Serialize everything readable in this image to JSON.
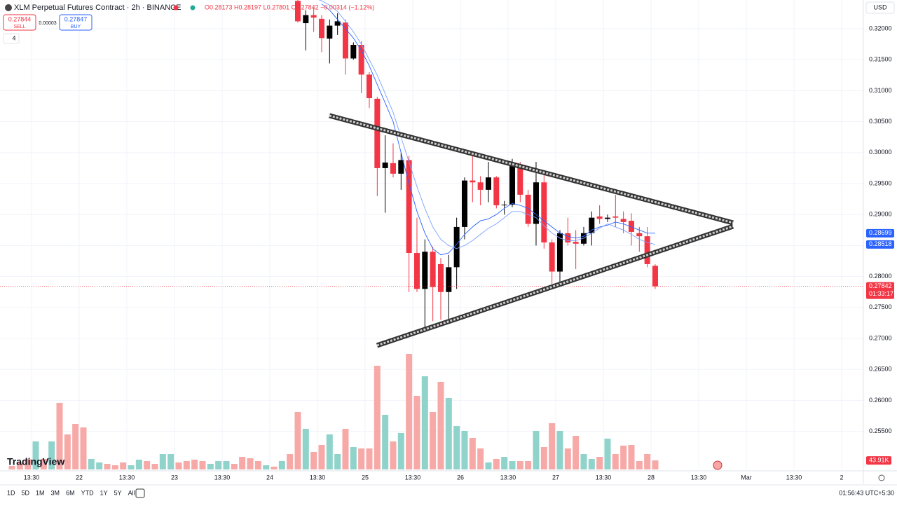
{
  "header": {
    "symbol": "XLM Perpetual Futures Contract · 2h · BINANCE",
    "ohlc": "O0.28173 H0.28197 L0.27801 C0.27842 −0.00314 (−1.12%)",
    "sell_price": "0.27844",
    "sell": "SELL",
    "spread": "0.00003",
    "buy_price": "0.27847",
    "buy": "BUY",
    "indicators": "4",
    "currency": "USD"
  },
  "price_axis": {
    "ylim": [
      0.24885,
      0.32464
    ],
    "ticks": [
      {
        "value": 0.32,
        "label": "0.32000"
      },
      {
        "value": 0.315,
        "label": "0.31500"
      },
      {
        "value": 0.31,
        "label": "0.31000"
      },
      {
        "value": 0.305,
        "label": "0.30500"
      },
      {
        "value": 0.3,
        "label": "0.30000"
      },
      {
        "value": 0.295,
        "label": "0.29500"
      },
      {
        "value": 0.29,
        "label": "0.29000"
      },
      {
        "value": 0.285,
        "label": "0.28500"
      },
      {
        "value": 0.28,
        "label": "0.28000"
      },
      {
        "value": 0.275,
        "label": "0.27500"
      },
      {
        "value": 0.27,
        "label": "0.27000"
      },
      {
        "value": 0.265,
        "label": "0.26500"
      },
      {
        "value": 0.26,
        "label": "0.26000"
      },
      {
        "value": 0.255,
        "label": "0.25500"
      }
    ],
    "ma_fast": {
      "value": 0.28699,
      "label": "0.28699",
      "color": "#2962ff"
    },
    "ma_slow": {
      "value": 0.28518,
      "label": "0.28518",
      "color": "#2962ff"
    },
    "last": {
      "value": 0.27842,
      "label": "0.27842",
      "countdown": "01:33:17"
    }
  },
  "volume_axis": {
    "vlim": [
      0,
      612000
    ],
    "last": {
      "value": 43910,
      "label": "43.91K"
    }
  },
  "time_axis": [
    "13:30",
    "22",
    "13:30",
    "23",
    "13:30",
    "24",
    "13:30",
    "25",
    "13:30",
    "26",
    "13:30",
    "27",
    "13:30",
    "28",
    "13:30",
    "Mar",
    "13:30",
    "2"
  ],
  "bars": [
    {
      "v": 17000,
      "up": false
    },
    {
      "v": 34000,
      "up": false
    },
    {
      "v": 51000,
      "up": false
    },
    {
      "v": 136000,
      "up": true
    },
    {
      "v": 51000,
      "up": false
    },
    {
      "v": 136000,
      "up": true
    },
    {
      "v": 323000,
      "up": false
    },
    {
      "v": 170000,
      "up": false
    },
    {
      "v": 221000,
      "up": false
    },
    {
      "v": 204000,
      "up": false
    },
    {
      "v": 51000,
      "up": true
    },
    {
      "v": 34000,
      "up": true
    },
    {
      "v": 27200,
      "up": false
    },
    {
      "v": 20400,
      "up": false
    },
    {
      "v": 34000,
      "up": false
    },
    {
      "v": 20400,
      "up": true
    },
    {
      "v": 47600,
      "up": true
    },
    {
      "v": 40800,
      "up": false
    },
    {
      "v": 27200,
      "up": false
    },
    {
      "v": 74800,
      "up": true
    },
    {
      "v": 74800,
      "up": true
    },
    {
      "v": 34000,
      "up": false
    },
    {
      "v": 40800,
      "up": false
    },
    {
      "v": 47600,
      "up": false
    },
    {
      "v": 40800,
      "up": false
    },
    {
      "v": 27200,
      "up": true
    },
    {
      "v": 40800,
      "up": true
    },
    {
      "v": 40800,
      "up": true
    },
    {
      "v": 27200,
      "up": false
    },
    {
      "v": 61200,
      "up": false
    },
    {
      "v": 54400,
      "up": false
    },
    {
      "v": 40800,
      "up": false
    },
    {
      "v": 20400,
      "up": true
    },
    {
      "v": 13600,
      "up": false
    },
    {
      "v": 40800,
      "up": true
    },
    {
      "v": 74800,
      "up": false
    },
    {
      "o": 0.3245,
      "h": 0.326,
      "l": 0.321,
      "c": 0.3212,
      "v": 278800
    },
    {
      "o": 0.3209,
      "h": 0.323,
      "l": 0.3165,
      "c": 0.3222,
      "v": 197200
    },
    {
      "o": 0.3222,
      "h": 0.3235,
      "l": 0.3195,
      "c": 0.3218,
      "v": 85000
    },
    {
      "o": 0.3216,
      "h": 0.3222,
      "l": 0.3162,
      "c": 0.3185,
      "v": 119000
    },
    {
      "o": 0.3184,
      "h": 0.3215,
      "l": 0.3144,
      "c": 0.3205,
      "v": 170000
    },
    {
      "o": 0.3205,
      "h": 0.3225,
      "l": 0.319,
      "c": 0.3212,
      "v": 74800
    },
    {
      "o": 0.321,
      "h": 0.3215,
      "l": 0.3126,
      "c": 0.3152,
      "v": 197200
    },
    {
      "o": 0.3152,
      "h": 0.3178,
      "l": 0.315,
      "c": 0.3174,
      "v": 108800
    },
    {
      "o": 0.3174,
      "h": 0.318,
      "l": 0.3096,
      "c": 0.3126,
      "v": 102000
    },
    {
      "o": 0.3126,
      "h": 0.313,
      "l": 0.3072,
      "c": 0.3088,
      "v": 102000
    },
    {
      "o": 0.3087,
      "h": 0.309,
      "l": 0.293,
      "c": 0.2975,
      "v": 503200
    },
    {
      "o": 0.2975,
      "h": 0.3028,
      "l": 0.2903,
      "c": 0.2984,
      "v": 265200
    },
    {
      "o": 0.2983,
      "h": 0.3015,
      "l": 0.296,
      "c": 0.2966,
      "v": 136000
    },
    {
      "o": 0.2966,
      "h": 0.3,
      "l": 0.294,
      "c": 0.2988,
      "v": 176800
    },
    {
      "o": 0.2988,
      "h": 0.2995,
      "l": 0.2775,
      "c": 0.2838,
      "v": 561000
    },
    {
      "o": 0.2838,
      "h": 0.2895,
      "l": 0.2775,
      "c": 0.278,
      "v": 357000
    },
    {
      "o": 0.278,
      "h": 0.286,
      "l": 0.271,
      "c": 0.284,
      "v": 452200
    },
    {
      "o": 0.284,
      "h": 0.2848,
      "l": 0.2728,
      "c": 0.2783,
      "v": 278800
    },
    {
      "o": 0.282,
      "h": 0.283,
      "l": 0.273,
      "c": 0.2775,
      "v": 425000
    },
    {
      "o": 0.2775,
      "h": 0.2835,
      "l": 0.273,
      "c": 0.2815,
      "v": 346800
    },
    {
      "o": 0.2815,
      "h": 0.2895,
      "l": 0.278,
      "c": 0.288,
      "v": 210800
    },
    {
      "o": 0.288,
      "h": 0.296,
      "l": 0.286,
      "c": 0.2955,
      "v": 187000
    },
    {
      "o": 0.2955,
      "h": 0.2995,
      "l": 0.292,
      "c": 0.2952,
      "v": 153000
    },
    {
      "o": 0.2952,
      "h": 0.2962,
      "l": 0.2915,
      "c": 0.294,
      "v": 102000
    },
    {
      "o": 0.294,
      "h": 0.2985,
      "l": 0.292,
      "c": 0.296,
      "v": 34000
    },
    {
      "o": 0.296,
      "h": 0.2962,
      "l": 0.291,
      "c": 0.2915,
      "v": 51000
    },
    {
      "o": 0.2915,
      "h": 0.2922,
      "l": 0.29,
      "c": 0.2916,
      "v": 61200
    },
    {
      "o": 0.2916,
      "h": 0.299,
      "l": 0.2912,
      "c": 0.298,
      "v": 40800
    },
    {
      "o": 0.298,
      "h": 0.2985,
      "l": 0.292,
      "c": 0.2932,
      "v": 40800
    },
    {
      "o": 0.2932,
      "h": 0.294,
      "l": 0.288,
      "c": 0.2885,
      "v": 40800
    },
    {
      "o": 0.2885,
      "h": 0.2985,
      "l": 0.285,
      "c": 0.2952,
      "v": 187000
    },
    {
      "o": 0.2952,
      "h": 0.297,
      "l": 0.2845,
      "c": 0.2855,
      "v": 108800
    },
    {
      "o": 0.2855,
      "h": 0.286,
      "l": 0.2788,
      "c": 0.2808,
      "v": 224400
    },
    {
      "o": 0.2808,
      "h": 0.2875,
      "l": 0.279,
      "c": 0.287,
      "v": 187000
    },
    {
      "o": 0.287,
      "h": 0.2895,
      "l": 0.285,
      "c": 0.2855,
      "v": 102000
    },
    {
      "o": 0.2856,
      "h": 0.2875,
      "l": 0.2812,
      "c": 0.2853,
      "v": 163200
    },
    {
      "o": 0.2853,
      "h": 0.288,
      "l": 0.285,
      "c": 0.287,
      "v": 74800
    },
    {
      "o": 0.287,
      "h": 0.2905,
      "l": 0.285,
      "c": 0.2895,
      "v": 51000
    },
    {
      "o": 0.2897,
      "h": 0.2915,
      "l": 0.2885,
      "c": 0.2893,
      "v": 61200
    },
    {
      "o": 0.2893,
      "h": 0.29,
      "l": 0.2888,
      "c": 0.2895,
      "v": 149600
    },
    {
      "o": 0.2897,
      "h": 0.2932,
      "l": 0.288,
      "c": 0.2895,
      "v": 74800
    },
    {
      "o": 0.2893,
      "h": 0.2905,
      "l": 0.287,
      "c": 0.2888,
      "v": 115600
    },
    {
      "o": 0.289,
      "h": 0.2902,
      "l": 0.285,
      "c": 0.2872,
      "v": 119000
    },
    {
      "o": 0.287,
      "h": 0.288,
      "l": 0.284,
      "c": 0.2865,
      "v": 40800
    },
    {
      "o": 0.2865,
      "h": 0.288,
      "l": 0.2815,
      "c": 0.282,
      "v": 74800
    },
    {
      "o": 0.28173,
      "h": 0.28197,
      "l": 0.27801,
      "c": 0.27842,
      "v": 43910
    }
  ],
  "ma_fast": [
    null,
    null,
    null,
    0.324,
    0.323,
    0.3215,
    0.32,
    0.3185,
    0.3165,
    0.314,
    0.311,
    0.308,
    0.305,
    0.3,
    0.295,
    0.2905,
    0.287,
    0.2845,
    0.2835,
    0.2838,
    0.2852,
    0.2868,
    0.288,
    0.289,
    0.2893,
    0.29,
    0.291,
    0.2918,
    0.2915,
    0.291,
    0.29,
    0.289,
    0.288,
    0.287,
    0.2865,
    0.2862,
    0.2865,
    0.2875,
    0.288,
    0.2883,
    0.2888,
    0.2885,
    0.288,
    0.2875,
    0.287,
    0.28699
  ],
  "ma_slow": [
    null,
    null,
    0.325,
    0.3245,
    0.3238,
    0.3228,
    0.3212,
    0.3195,
    0.3175,
    0.315,
    0.3125,
    0.3095,
    0.3065,
    0.3025,
    0.2985,
    0.2945,
    0.291,
    0.288,
    0.286,
    0.285,
    0.2845,
    0.285,
    0.2858,
    0.2868,
    0.2878,
    0.2885,
    0.2895,
    0.2905,
    0.2905,
    0.29,
    0.2895,
    0.2882,
    0.287,
    0.2862,
    0.2858,
    0.2858,
    0.2862,
    0.287,
    0.2878,
    0.2885,
    0.288,
    0.2875,
    0.2868,
    0.286,
    0.2855,
    0.28518
  ],
  "toolbar": {
    "ranges": [
      "1D",
      "5D",
      "1M",
      "3M",
      "6M",
      "YTD",
      "1Y",
      "5Y",
      "All"
    ],
    "clock": "01:56:43 UTC+5:30",
    "brand": "TradingView"
  }
}
